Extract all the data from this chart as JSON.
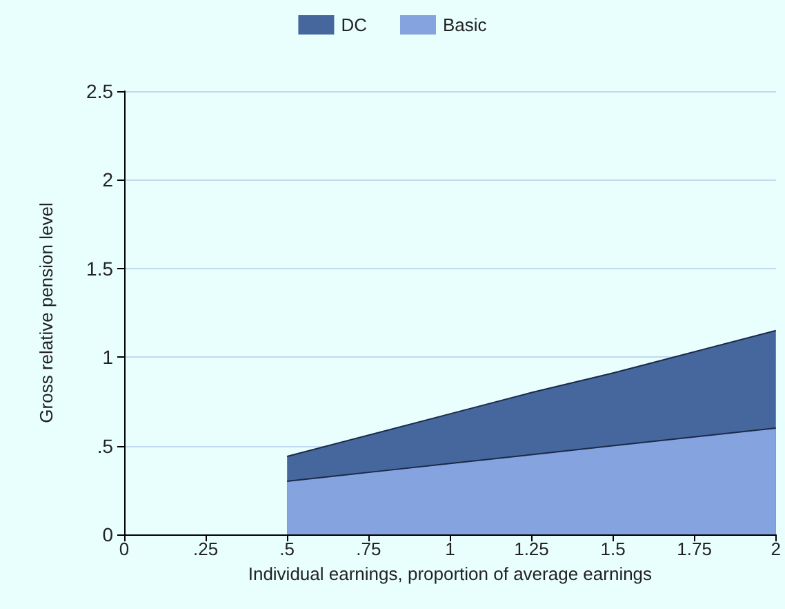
{
  "chart_data": {
    "type": "area",
    "stacked": true,
    "xlabel": "Individual earnings, proportion of average earnings",
    "ylabel": "Gross relative pension level",
    "x": [
      0.5,
      0.75,
      1,
      1.25,
      1.5,
      1.75,
      2
    ],
    "series": [
      {
        "name": "Basic",
        "color": "#85a3de",
        "values": [
          0.3,
          0.35,
          0.4,
          0.45,
          0.5,
          0.55,
          0.6
        ]
      },
      {
        "name": "DC",
        "color": "#46679e",
        "values": [
          0.14,
          0.21,
          0.28,
          0.35,
          0.41,
          0.48,
          0.55
        ]
      }
    ],
    "xlim": [
      0,
      2
    ],
    "xticks": [
      0,
      {
        "value": 0.25,
        "label": ".25"
      },
      {
        "value": 0.5,
        "label": ".5"
      },
      {
        "value": 0.75,
        "label": ".75"
      },
      1,
      1.25,
      1.5,
      1.75,
      2
    ],
    "ylim": [
      0,
      2.5
    ],
    "yticks": [
      0,
      {
        "value": 0.5,
        "label": ".5"
      },
      1,
      1.5,
      2,
      2.5
    ],
    "grid": "y",
    "legend": "top"
  }
}
